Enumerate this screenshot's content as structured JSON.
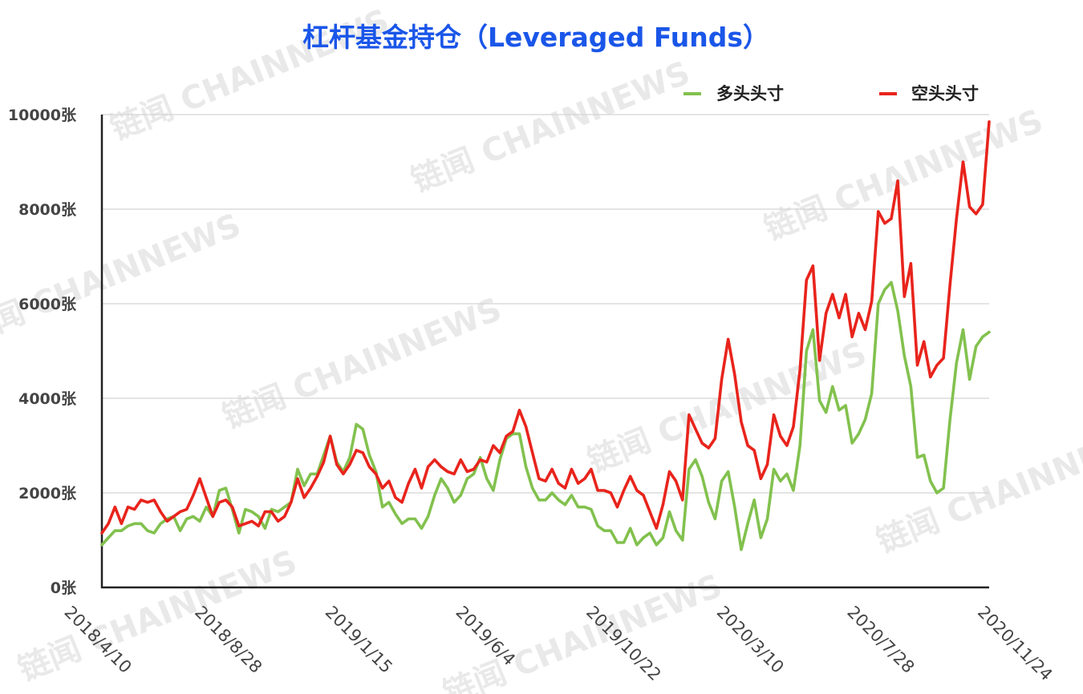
{
  "colors": {
    "title": "#1a56e8",
    "long": "#82c14e",
    "short": "#e8241c",
    "grid": "#d4d4d4",
    "axis": "#222222"
  },
  "watermark_text": "链闻 CHAINNEWS",
  "chart_data": {
    "type": "line",
    "title": "杠杆基金持仓（Leveraged Funds）",
    "xlabel": "",
    "ylabel": "",
    "ylim": [
      0,
      10000
    ],
    "ytick_values": [
      0,
      2000,
      4000,
      6000,
      8000,
      10000
    ],
    "ytick_labels": [
      "0张",
      "2000张",
      "4000张",
      "6000张",
      "8000张",
      "10000张"
    ],
    "xtick_labels": [
      "2018/4/10",
      "2018/8/28",
      "2019/1/15",
      "2019/6/4",
      "2019/10/22",
      "2020/3/10",
      "2020/7/28",
      "2020/11/24"
    ],
    "xtick_indices": [
      0,
      20,
      40,
      60,
      80,
      100,
      120,
      140
    ],
    "grid": true,
    "legend_position": "top-right",
    "series": [
      {
        "name": "多头头寸",
        "color": "#82c14e",
        "values": [
          900,
          1050,
          1200,
          1200,
          1300,
          1350,
          1350,
          1200,
          1150,
          1350,
          1450,
          1500,
          1200,
          1450,
          1500,
          1400,
          1700,
          1500,
          2050,
          2100,
          1650,
          1150,
          1650,
          1600,
          1500,
          1250,
          1650,
          1600,
          1700,
          1800,
          2500,
          2150,
          2400,
          2400,
          2800,
          3200,
          2650,
          2450,
          2750,
          3450,
          3350,
          2800,
          2450,
          1700,
          1800,
          1550,
          1350,
          1450,
          1450,
          1250,
          1500,
          1950,
          2300,
          2100,
          1800,
          1950,
          2300,
          2400,
          2750,
          2300,
          2050,
          2700,
          3150,
          3250,
          3250,
          2550,
          2100,
          1850,
          1850,
          2000,
          1850,
          1750,
          1950,
          1700,
          1700,
          1650,
          1300,
          1200,
          1200,
          950,
          950,
          1250,
          900,
          1050,
          1150,
          900,
          1050,
          1600,
          1200,
          1000,
          2500,
          2700,
          2350,
          1800,
          1450,
          2250,
          2450,
          1700,
          800,
          1350,
          1850,
          1050,
          1450,
          2500,
          2250,
          2400,
          2050,
          3000,
          5000,
          5450,
          3950,
          3700,
          4250,
          3750,
          3850,
          3050,
          3250,
          3550,
          4100,
          6000,
          6300,
          6450,
          5850,
          4900,
          4250,
          2750,
          2800,
          2250,
          2000,
          2100,
          3550,
          4750,
          5450,
          4400,
          5100,
          5300,
          5400
        ]
      },
      {
        "name": "空头头寸",
        "color": "#e8241c",
        "values": [
          1150,
          1350,
          1700,
          1350,
          1700,
          1650,
          1850,
          1800,
          1850,
          1600,
          1400,
          1500,
          1600,
          1650,
          1950,
          2300,
          1900,
          1500,
          1800,
          1850,
          1700,
          1300,
          1350,
          1400,
          1300,
          1600,
          1600,
          1400,
          1500,
          1800,
          2300,
          1900,
          2100,
          2350,
          2650,
          3200,
          2600,
          2400,
          2600,
          2900,
          2850,
          2550,
          2400,
          2100,
          2250,
          1900,
          1800,
          2200,
          2500,
          2100,
          2550,
          2700,
          2550,
          2450,
          2400,
          2700,
          2450,
          2500,
          2700,
          2650,
          3000,
          2850,
          3200,
          3300,
          3750,
          3400,
          2850,
          2300,
          2250,
          2500,
          2200,
          2100,
          2500,
          2200,
          2300,
          2500,
          2050,
          2050,
          2000,
          1700,
          2050,
          2350,
          2050,
          1950,
          1600,
          1250,
          1750,
          2450,
          2250,
          1850,
          3650,
          3350,
          3050,
          2950,
          3150,
          4400,
          5250,
          4500,
          3500,
          3000,
          2900,
          2300,
          2600,
          3650,
          3200,
          3000,
          3400,
          4600,
          6500,
          6800,
          4800,
          5800,
          6200,
          5700,
          6200,
          5300,
          5800,
          5450,
          6050,
          7950,
          7700,
          7800,
          8600,
          6150,
          6850,
          4700,
          5200,
          4450,
          4700,
          4850,
          6400,
          7800,
          9000,
          8050,
          7900,
          8100,
          9850
        ]
      }
    ]
  }
}
